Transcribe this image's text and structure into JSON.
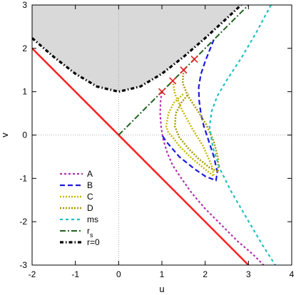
{
  "chart_data": {
    "type": "line",
    "xlabel": "u",
    "ylabel": "v",
    "xlim": [
      -2,
      4
    ],
    "ylim": [
      -3,
      3
    ],
    "xticks": [
      "-2",
      "-1",
      "0",
      "1",
      "2",
      "3",
      "4"
    ],
    "yticks": [
      "-3",
      "-2",
      "-1",
      "0",
      "1",
      "2",
      "3"
    ],
    "zero_gridlines": true,
    "legend_position": "bottom-left",
    "shaded_region": {
      "description_bound": "r=0",
      "color": "#d9d9d9",
      "boundary": [
        [
          -2,
          2.236
        ],
        [
          -1.5,
          1.803
        ],
        [
          -1,
          1.414
        ],
        [
          -0.5,
          1.118
        ],
        [
          0,
          1.0
        ],
        [
          0.5,
          1.118
        ],
        [
          1,
          1.414
        ],
        [
          1.5,
          1.803
        ],
        [
          2,
          2.236
        ],
        [
          2.5,
          2.693
        ],
        [
          2.83,
          3.0
        ]
      ]
    },
    "series": [
      {
        "name": "A",
        "color": "#b030b0",
        "dash": "3,3",
        "width": 2.2,
        "points": [
          [
            1.0,
            1.0
          ],
          [
            0.97,
            0.8
          ],
          [
            0.96,
            0.5
          ],
          [
            0.98,
            0.2
          ],
          [
            1.03,
            -0.1
          ],
          [
            1.12,
            -0.4
          ],
          [
            1.25,
            -0.7
          ],
          [
            1.45,
            -1.0
          ],
          [
            1.7,
            -1.35
          ],
          [
            2.0,
            -1.7
          ],
          [
            2.35,
            -2.05
          ],
          [
            2.75,
            -2.45
          ],
          [
            3.1,
            -2.75
          ],
          [
            3.35,
            -3.0
          ]
        ]
      },
      {
        "name": "B",
        "color": "#1a1adc",
        "dash": "7,4",
        "width": 2.2,
        "points": [
          [
            2.2,
            2.2
          ],
          [
            2.12,
            2.0
          ],
          [
            2.0,
            1.7
          ],
          [
            1.9,
            1.4
          ],
          [
            1.85,
            1.1
          ],
          [
            1.86,
            0.8
          ],
          [
            1.9,
            0.5
          ],
          [
            1.97,
            0.2
          ],
          [
            2.07,
            -0.1
          ],
          [
            2.2,
            -0.5
          ],
          [
            2.28,
            -0.85
          ],
          [
            2.25,
            -1.05
          ],
          [
            2.0,
            -0.95
          ],
          [
            1.75,
            -0.78
          ],
          [
            1.4,
            -0.5
          ],
          [
            1.1,
            -0.15
          ],
          [
            1.0,
            0.0
          ]
        ]
      },
      {
        "name": "C",
        "color": "#c8b800",
        "dash": "2,2",
        "width": 2.5,
        "points": [
          [
            1.25,
            1.25
          ],
          [
            1.3,
            0.95
          ],
          [
            1.48,
            0.55
          ],
          [
            1.7,
            0.15
          ],
          [
            1.95,
            -0.25
          ],
          [
            2.15,
            -0.7
          ],
          [
            2.2,
            -0.95
          ],
          [
            1.95,
            -0.75
          ],
          [
            1.65,
            -0.5
          ],
          [
            1.4,
            -0.25
          ],
          [
            1.25,
            -0.05
          ],
          [
            1.15,
            0.05
          ],
          [
            1.1,
            0.2
          ],
          [
            1.15,
            0.5
          ],
          [
            1.28,
            0.75
          ],
          [
            1.5,
            0.95
          ]
        ]
      },
      {
        "name": "D",
        "color": "#a89800",
        "dash": "2,2",
        "width": 2.5,
        "points": [
          [
            1.5,
            1.5
          ],
          [
            1.48,
            1.2
          ],
          [
            1.6,
            0.9
          ],
          [
            1.8,
            0.6
          ],
          [
            2.02,
            0.25
          ],
          [
            2.2,
            -0.15
          ],
          [
            2.3,
            -0.55
          ],
          [
            2.3,
            -0.85
          ],
          [
            2.1,
            -0.75
          ],
          [
            1.85,
            -0.55
          ],
          [
            1.6,
            -0.3
          ],
          [
            1.4,
            -0.05
          ],
          [
            1.3,
            0.2
          ],
          [
            1.32,
            0.5
          ],
          [
            1.45,
            0.75
          ],
          [
            1.62,
            0.95
          ]
        ]
      },
      {
        "name": "ms",
        "color": "#20c0c0",
        "dash": "4,4",
        "width": 2.2,
        "points": [
          [
            3.52,
            3.0
          ],
          [
            3.2,
            2.4
          ],
          [
            2.85,
            1.8
          ],
          [
            2.52,
            1.3
          ],
          [
            2.28,
            0.9
          ],
          [
            2.15,
            0.55
          ],
          [
            2.1,
            0.2
          ],
          [
            2.18,
            -0.3
          ],
          [
            2.35,
            -0.8
          ],
          [
            2.6,
            -1.3
          ],
          [
            2.95,
            -1.9
          ],
          [
            3.3,
            -2.5
          ],
          [
            3.62,
            -3.0
          ]
        ]
      },
      {
        "name": "r_s",
        "legend_sub": "s",
        "color": "#206020",
        "dash": "8,3,2,3",
        "width": 2,
        "points": [
          [
            0,
            0
          ],
          [
            3,
            3
          ]
        ]
      },
      {
        "name": "r=0",
        "color": "#000000",
        "dash": "5,3,1.5,3",
        "width": 3.2,
        "points": [
          [
            -2,
            2.236
          ],
          [
            -1.5,
            1.803
          ],
          [
            -1,
            1.414
          ],
          [
            -0.5,
            1.118
          ],
          [
            0,
            1.0
          ],
          [
            0.5,
            1.118
          ],
          [
            1,
            1.414
          ],
          [
            1.5,
            1.803
          ],
          [
            2,
            2.236
          ],
          [
            2.5,
            2.693
          ],
          [
            2.83,
            3.0
          ]
        ]
      }
    ],
    "reference_line": {
      "color": "#ff2020",
      "width": 2.5,
      "points": [
        [
          -2,
          2
        ],
        [
          3,
          -3
        ]
      ]
    },
    "markers": {
      "symbol": "x",
      "color": "#e02020",
      "points": [
        [
          1.0,
          1.0
        ],
        [
          1.25,
          1.25
        ],
        [
          1.5,
          1.5
        ],
        [
          1.75,
          1.75
        ]
      ]
    }
  },
  "legend": [
    {
      "label": "A"
    },
    {
      "label": "B"
    },
    {
      "label": "C"
    },
    {
      "label": "D"
    },
    {
      "label": "ms"
    },
    {
      "label": "r",
      "sub": "s"
    },
    {
      "label": "r=0"
    }
  ]
}
